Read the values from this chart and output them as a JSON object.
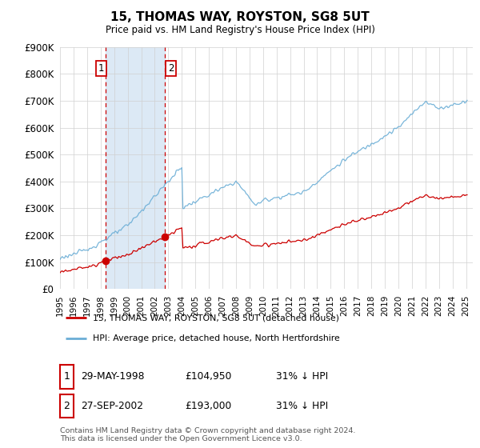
{
  "title": "15, THOMAS WAY, ROYSTON, SG8 5UT",
  "subtitle": "Price paid vs. HM Land Registry's House Price Index (HPI)",
  "legend_line1": "15, THOMAS WAY, ROYSTON, SG8 5UT (detached house)",
  "legend_line2": "HPI: Average price, detached house, North Hertfordshire",
  "sale1_date": "29-MAY-1998",
  "sale1_price": "£104,950",
  "sale1_hpi": "31% ↓ HPI",
  "sale2_date": "27-SEP-2002",
  "sale2_price": "£193,000",
  "sale2_hpi": "31% ↓ HPI",
  "footer": "Contains HM Land Registry data © Crown copyright and database right 2024.\nThis data is licensed under the Open Government Licence v3.0.",
  "hpi_color": "#6baed6",
  "price_color": "#cc0000",
  "sale_marker_color": "#cc0000",
  "shaded_region_color": "#dce9f5",
  "dashed_line_color": "#cc0000",
  "ylim": [
    0,
    900000
  ],
  "yticks": [
    0,
    100000,
    200000,
    300000,
    400000,
    500000,
    600000,
    700000,
    800000,
    900000
  ],
  "ytick_labels": [
    "£0",
    "£100K",
    "£200K",
    "£300K",
    "£400K",
    "£500K",
    "£600K",
    "£700K",
    "£800K",
    "£900K"
  ],
  "xlim_start": 1995.0,
  "xlim_end": 2025.5,
  "sale1_x": 1998.38,
  "sale1_y": 104950,
  "sale2_x": 2002.75,
  "sale2_y": 193000,
  "shade_x1": 1998.38,
  "shade_x2": 2002.75
}
